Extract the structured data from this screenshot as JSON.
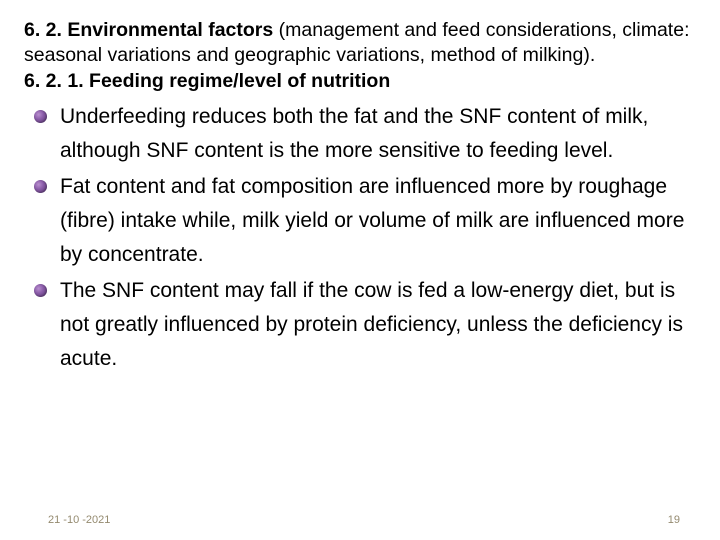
{
  "heading": {
    "part1_bold": "6. 2. Environmental factors ",
    "part2": "(management and feed considerations, climate: seasonal variations and geographic variations, method of milking).",
    "part3_bold": "6. 2. 1. Feeding regime/level of nutrition"
  },
  "bullets": [
    "Underfeeding reduces both the fat and the SNF content of milk, although SNF content is the more sensitive to feeding level.",
    "Fat content and fat composition are influenced more by roughage (fibre) intake while, milk yield or volume of milk are influenced more by concentrate.",
    "The SNF content may fall if the cow is fed a low-energy diet, but is not greatly influenced by protein deficiency, unless the deficiency is acute."
  ],
  "footer": {
    "date": "21 -10 -2021",
    "page": "19"
  },
  "colors": {
    "text": "#000000",
    "footer_text": "#948a6f",
    "bullet_light": "#b98fcf",
    "bullet_mid": "#8a5ca8",
    "bullet_dark": "#5e3a7a",
    "background": "#ffffff"
  },
  "typography": {
    "heading_fontsize": 19.5,
    "body_fontsize": 21,
    "footer_fontsize": 11,
    "line_height": 1.62
  }
}
